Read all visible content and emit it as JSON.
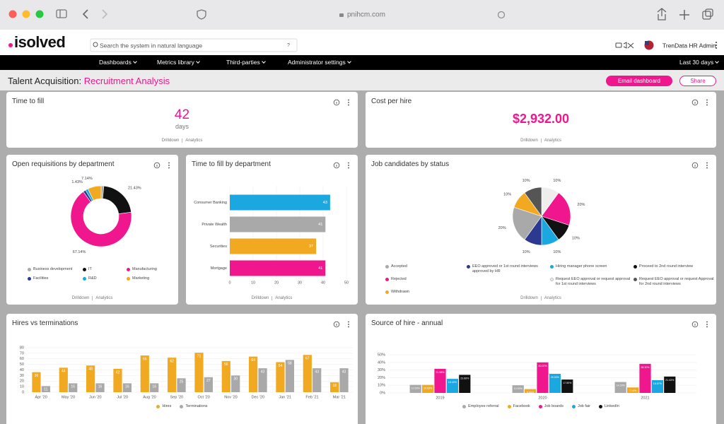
{
  "browser": {
    "url": "pnihcm.com"
  },
  "header": {
    "logo": "isolved",
    "search_placeholder": "Search the system in natural language",
    "help": "?",
    "user": "TrenData HR Admin"
  },
  "nav": {
    "items": [
      "Dashboards",
      "Metrics library",
      "Third-parties",
      "Administrator settings"
    ],
    "date_range": "Last 30 days"
  },
  "dashboard": {
    "title_prefix": "Talent Acquisition:",
    "title": "Recruitment Analysis",
    "actions": [
      "Email dashboard",
      "Share"
    ]
  },
  "footer_links": [
    "Drilldown",
    "Analytics"
  ],
  "kpis": [
    {
      "title": "Time to fill",
      "value": 42,
      "unit": "days"
    },
    {
      "title": "Cost per hire",
      "value": "$2,932.00"
    }
  ],
  "chart_data": [
    {
      "type": "pie",
      "donut": true,
      "title": "Open requisitions by department",
      "categories": [
        "Business development",
        "IT",
        "Manufacturing",
        "Facilities",
        "R&D",
        "Marketing"
      ],
      "values": [
        1.43,
        21.43,
        67.14,
        1.43,
        1.43,
        7.14
      ],
      "value_labels": [
        null,
        "21.43%",
        "67.14%",
        null,
        "1.43%",
        "7.14%"
      ],
      "colors": [
        "#a9a9a9",
        "#111111",
        "#f0168d",
        "#2b3990",
        "#1ba7e0",
        "#f2a922"
      ]
    },
    {
      "type": "bar",
      "orientation": "horizontal",
      "title": "Time to fill by department",
      "categories": [
        "Consumer Banking",
        "Private Wealth",
        "Securities",
        "Mortgage"
      ],
      "values": [
        43,
        41,
        37,
        41
      ],
      "colors": [
        "#1ba7e0",
        "#a9a9a9",
        "#f2a922",
        "#f0168d"
      ],
      "xlim": [
        0,
        50
      ],
      "xticks": [
        0,
        10,
        20,
        30,
        40,
        50
      ],
      "grid": true
    },
    {
      "type": "pie",
      "donut": false,
      "title": "Job candidates by status",
      "categories": [
        "Request EEO approval or request approval for 1st round interviews",
        "Rejected",
        "Proceed to 2nd round interview",
        "Hiring manager phone screen",
        "EEO approved or 1st round interviews approved by HR",
        "Accepted",
        "Withdrawn",
        "Request EEO approval or request Approval for 2nd round interviews"
      ],
      "values": [
        10,
        20,
        10,
        10,
        10,
        20,
        10,
        10
      ],
      "value_labels": [
        "10%",
        "20%",
        "10%",
        "10%",
        "10%",
        "20%",
        "10%",
        "10%"
      ],
      "colors": [
        "#eeeeee",
        "#f0168d",
        "#111111",
        "#1ba7e0",
        "#2b3990",
        "#a9a9a9",
        "#f2a922",
        "#555555"
      ]
    },
    {
      "type": "bar",
      "orientation": "vertical",
      "title": "Hires vs terminations",
      "categories": [
        "Apr '20",
        "May '20",
        "Jun '20",
        "Jul '20",
        "Aug '20",
        "Sep '20",
        "Oct '20",
        "Nov '20",
        "Dec '20",
        "Jan '21",
        "Feb '21",
        "Mar '21"
      ],
      "series": [
        {
          "name": "Hires",
          "color": "#f2a922",
          "values": [
            36,
            44,
            48,
            42,
            66,
            62,
            71,
            56,
            64,
            54,
            67,
            18
          ]
        },
        {
          "name": "Terminations",
          "color": "#a9a9a9",
          "values": [
            11,
            16,
            16,
            16,
            16,
            25,
            27,
            30,
            43,
            58,
            43,
            43
          ]
        }
      ],
      "ylim": [
        0,
        80
      ],
      "yticks": [
        0,
        10,
        20,
        30,
        40,
        50,
        60,
        70,
        80
      ],
      "grid": true
    },
    {
      "type": "bar",
      "orientation": "vertical",
      "title": "Source of hire - annual",
      "categories": [
        "2019",
        "2020",
        "2021"
      ],
      "series": [
        {
          "name": "Employee referral",
          "color": "#a9a9a9",
          "values": [
            10.53,
            10,
            14.29
          ],
          "value_labels": [
            "10.53%",
            "10.00%",
            "14.29%"
          ]
        },
        {
          "name": "Facebook",
          "color": "#f2a922",
          "values": [
            10.53,
            5,
            7.14
          ],
          "value_labels": [
            "10.53%",
            "5.00%",
            "7.14%"
          ]
        },
        {
          "name": "Job boards",
          "color": "#f0168d",
          "values": [
            31.58,
            40,
            38.1
          ],
          "value_labels": [
            "31.58%",
            "40.00%",
            "38.10%"
          ]
        },
        {
          "name": "Job fair",
          "color": "#1ba7e0",
          "values": [
            18.42,
            25,
            16.67
          ],
          "value_labels": [
            "18.42%",
            "25.00%",
            "16.67%"
          ]
        },
        {
          "name": "LinkedIn",
          "color": "#111111",
          "values": [
            23.68,
            17.5,
            21.43
          ],
          "value_labels": [
            "23.68%",
            "17.50%",
            "21.43%"
          ]
        }
      ],
      "ylim": [
        0,
        50
      ],
      "yticks": [
        {
          "value": 0,
          "label": "0%"
        },
        {
          "value": 10,
          "label": "10%"
        },
        {
          "value": 20,
          "label": "20%"
        },
        {
          "value": 30,
          "label": "30%"
        },
        {
          "value": 40,
          "label": "40%"
        },
        {
          "value": 50,
          "label": "50%"
        }
      ],
      "grid": true
    }
  ]
}
